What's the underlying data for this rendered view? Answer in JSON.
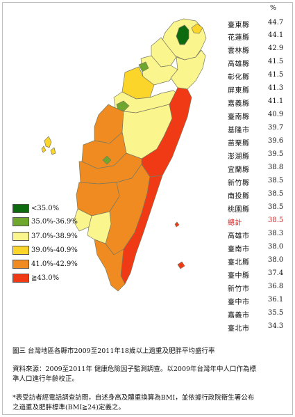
{
  "colors": {
    "lt35": "#0e6a0e",
    "c35_36_9": "#6fa62d",
    "c37_38_9": "#fbf58e",
    "c39_40_9": "#fbd52a",
    "c41_42_9": "#f08b21",
    "ge43": "#f03a15",
    "border": "#7a7a60",
    "highlight_text": "#d11e1e"
  },
  "legend": [
    {
      "label": "<35.0%",
      "color": "#0e6a0e"
    },
    {
      "label": "35.0%-36.9%",
      "color": "#6fa62d"
    },
    {
      "label": "37.0%-38.9%",
      "color": "#fbf58e"
    },
    {
      "label": "39.0%-40.9%",
      "color": "#fbd52a"
    },
    {
      "label": "41.0%-42.9%",
      "color": "#f08b21"
    },
    {
      "label": "≧43.0%",
      "color": "#f03a15"
    }
  ],
  "table": {
    "unit": "%",
    "rows": [
      {
        "name": "臺東縣",
        "value": "44.7"
      },
      {
        "name": "花蓮縣",
        "value": "44.1"
      },
      {
        "name": "雲林縣",
        "value": "42.9"
      },
      {
        "name": "高雄縣",
        "value": "41.5"
      },
      {
        "name": "彰化縣",
        "value": "41.5"
      },
      {
        "name": "屏東縣",
        "value": "41.3"
      },
      {
        "name": "嘉義縣",
        "value": "41.1"
      },
      {
        "name": "臺南縣",
        "value": "40.9"
      },
      {
        "name": "基隆市",
        "value": "39.7"
      },
      {
        "name": "苗栗縣",
        "value": "39.6"
      },
      {
        "name": "澎湖縣",
        "value": "39.5"
      },
      {
        "name": "宜蘭縣",
        "value": "38.8"
      },
      {
        "name": "新竹縣",
        "value": "38.5"
      },
      {
        "name": "南投縣",
        "value": "38.5"
      },
      {
        "name": "桃園縣",
        "value": "38.5"
      },
      {
        "name": "總計",
        "value": "38.5",
        "highlight": true
      },
      {
        "name": "高雄市",
        "value": "38.3"
      },
      {
        "name": "臺南市",
        "value": "38.0"
      },
      {
        "name": "臺北縣",
        "value": "38.0"
      },
      {
        "name": "臺中縣",
        "value": "37.4"
      },
      {
        "name": "新竹市",
        "value": "36.8"
      },
      {
        "name": "臺中市",
        "value": "36.1"
      },
      {
        "name": "嘉義市",
        "value": "35.5"
      },
      {
        "name": "臺北市",
        "value": "34.3"
      }
    ]
  },
  "caption": {
    "figure": "圖三  台灣地區各縣市2009至2011年18歲以上過重及肥胖平均盛行率",
    "source_line1": "資料來源：2009至2011年 健康危險因子監測調查。以2009年台灣年中人口作為標",
    "source_line2": "準人口進行年齡校正。",
    "note_line1": "*表受訪者經電話調查訪問，自述身高及體重換算為BMI，並依據行政院衛生署公布",
    "note_line2": "之過重及肥胖標準(BMI≧24)定義之。"
  }
}
